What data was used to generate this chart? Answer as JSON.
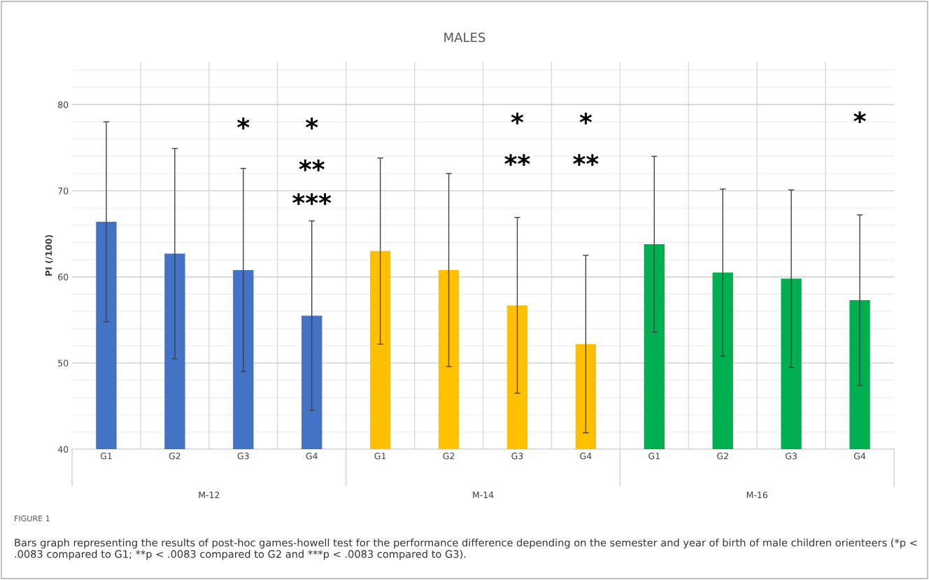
{
  "chart_data": {
    "type": "bar",
    "title": "MALES",
    "ylabel": "PI (/100)",
    "categories": [
      "G1",
      "G2",
      "G3",
      "G4",
      "G1",
      "G2",
      "G3",
      "G4",
      "G1",
      "G2",
      "G3",
      "G4"
    ],
    "values": [
      66.4,
      62.7,
      60.8,
      55.5,
      63.0,
      60.8,
      56.7,
      52.2,
      63.8,
      60.5,
      59.8,
      57.3
    ],
    "errors": [
      11.6,
      12.2,
      11.8,
      11.0,
      10.8,
      11.2,
      10.2,
      10.3,
      10.2,
      9.7,
      10.3,
      9.9
    ],
    "colors": [
      "#4472c4",
      "#4472c4",
      "#4472c4",
      "#4472c4",
      "#ffc000",
      "#ffc000",
      "#ffc000",
      "#ffc000",
      "#00b050",
      "#00b050",
      "#00b050",
      "#00b050"
    ],
    "ylim": [
      40,
      85
    ],
    "yticks": [
      40,
      50,
      60,
      70,
      80
    ],
    "grid": true,
    "annotations": [
      "*",
      "*",
      "**",
      "***",
      "*",
      "**",
      "*",
      "**",
      "*",
      "M-12",
      "M-14",
      "M-16",
      "FIGURE 1",
      "Bars graph representing the results of post-hoc games-howell test for the performance difference depending on the semester and year of birth of male children orienteers (*p < .0083 compared to G1; **p < .0083 compared to G2 and ***p < .0083 compared to G3)."
    ]
  }
}
